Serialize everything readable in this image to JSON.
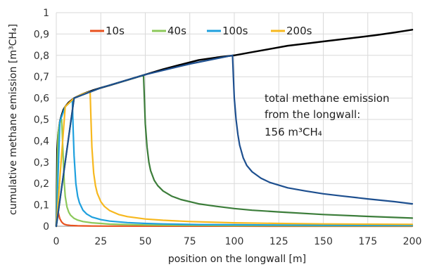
{
  "chart_data": {
    "type": "line",
    "title": "",
    "xlabel": "position on the longwall  [m]",
    "ylabel": "cumulative methane emission  [m³CH₄]",
    "xlim": [
      0,
      200
    ],
    "ylim": [
      0,
      1
    ],
    "xticks": [
      "0",
      "25",
      "50",
      "75",
      "100",
      "125",
      "150",
      "175",
      "200"
    ],
    "yticks": [
      "0",
      "0,1",
      "0,2",
      "0,3",
      "0,4",
      "0,5",
      "0,6",
      "0,7",
      "0,8",
      "0,9",
      "1"
    ],
    "grid": true,
    "legend_position": "top",
    "series": [
      {
        "name": "",
        "color": "#000000",
        "x": [
          0,
          0.5,
          1,
          2,
          3,
          4,
          5,
          7,
          10,
          15,
          20,
          25,
          30,
          40,
          50,
          60,
          70,
          80,
          90,
          100,
          110,
          120,
          130,
          140,
          150,
          160,
          170,
          180,
          190,
          200
        ],
        "y": [
          0,
          0.36,
          0.43,
          0.49,
          0.52,
          0.545,
          0.56,
          0.58,
          0.6,
          0.62,
          0.635,
          0.648,
          0.66,
          0.685,
          0.71,
          0.735,
          0.757,
          0.778,
          0.79,
          0.8,
          0.815,
          0.83,
          0.845,
          0.855,
          0.865,
          0.875,
          0.885,
          0.895,
          0.907,
          0.92
        ]
      },
      {
        "name": "10s",
        "color": "#e8511e",
        "x": [
          0,
          0.5,
          1,
          1.5,
          2,
          3,
          4,
          5,
          6,
          8,
          10,
          12,
          15,
          20,
          30,
          40,
          60,
          80,
          100,
          120,
          150,
          200
        ],
        "y": [
          0,
          0.09,
          0.07,
          0.05,
          0.035,
          0.02,
          0.012,
          0.008,
          0.006,
          0.004,
          0.003,
          0.002,
          0.0015,
          0.001,
          0.0007,
          0.0005,
          0.0003,
          0.0002,
          0.0002,
          0.0001,
          0.0001,
          0.0001
        ]
      },
      {
        "name": "40s",
        "color": "#8cc85a",
        "x": [
          0,
          1,
          2,
          3,
          3.5,
          4,
          4.5,
          5,
          6,
          7,
          8,
          10,
          12,
          15,
          20,
          25,
          30,
          40,
          50,
          60,
          80,
          100,
          120,
          150,
          200
        ],
        "y": [
          0,
          0.43,
          0.49,
          0.5,
          0.4,
          0.3,
          0.2,
          0.14,
          0.09,
          0.066,
          0.052,
          0.037,
          0.029,
          0.022,
          0.016,
          0.013,
          0.01,
          0.008,
          0.006,
          0.005,
          0.004,
          0.003,
          0.003,
          0.002,
          0.002
        ]
      },
      {
        "name": "100s",
        "color": "#1fa0de",
        "x": [
          0,
          2,
          5,
          9,
          9.5,
          10,
          11,
          12,
          13,
          15,
          17,
          20,
          25,
          30,
          40,
          50,
          60,
          80,
          100,
          120,
          150,
          200
        ],
        "y": [
          0,
          0.49,
          0.56,
          0.59,
          0.45,
          0.33,
          0.2,
          0.14,
          0.11,
          0.075,
          0.058,
          0.043,
          0.031,
          0.024,
          0.017,
          0.013,
          0.011,
          0.008,
          0.007,
          0.006,
          0.005,
          0.004
        ]
      },
      {
        "name": "200s",
        "color": "#f7b81e",
        "x": [
          0,
          5,
          10,
          15,
          19,
          19.5,
          20,
          21,
          22,
          23,
          25,
          27,
          30,
          35,
          40,
          50,
          60,
          75,
          100,
          125,
          150,
          200
        ],
        "y": [
          0,
          0.56,
          0.6,
          0.62,
          0.63,
          0.5,
          0.37,
          0.25,
          0.19,
          0.155,
          0.115,
          0.093,
          0.073,
          0.055,
          0.045,
          0.034,
          0.028,
          0.022,
          0.016,
          0.013,
          0.011,
          0.009
        ]
      },
      {
        "name": "",
        "color": "#3c7d3a",
        "x": [
          0,
          10,
          25,
          40,
          49,
          49.5,
          50,
          51,
          52,
          53,
          55,
          57,
          60,
          65,
          70,
          80,
          90,
          100,
          110,
          125,
          150,
          175,
          200
        ],
        "y": [
          0,
          0.6,
          0.648,
          0.685,
          0.707,
          0.6,
          0.48,
          0.37,
          0.3,
          0.26,
          0.215,
          0.19,
          0.165,
          0.14,
          0.125,
          0.105,
          0.093,
          0.083,
          0.075,
          0.067,
          0.055,
          0.046,
          0.038
        ]
      },
      {
        "name": "",
        "color": "#1d4f8f",
        "x": [
          0,
          10,
          25,
          50,
          75,
          99,
          99.5,
          100,
          101,
          102,
          103,
          105,
          107,
          110,
          115,
          120,
          130,
          140,
          150,
          160,
          175,
          190,
          200
        ],
        "y": [
          0,
          0.6,
          0.648,
          0.71,
          0.76,
          0.8,
          0.7,
          0.6,
          0.5,
          0.43,
          0.38,
          0.32,
          0.285,
          0.255,
          0.225,
          0.205,
          0.18,
          0.165,
          0.152,
          0.142,
          0.128,
          0.115,
          0.105
        ]
      }
    ],
    "annotation_lines": [
      "total methane emission",
      "from the longwall:",
      "156 m³CH₄"
    ]
  }
}
